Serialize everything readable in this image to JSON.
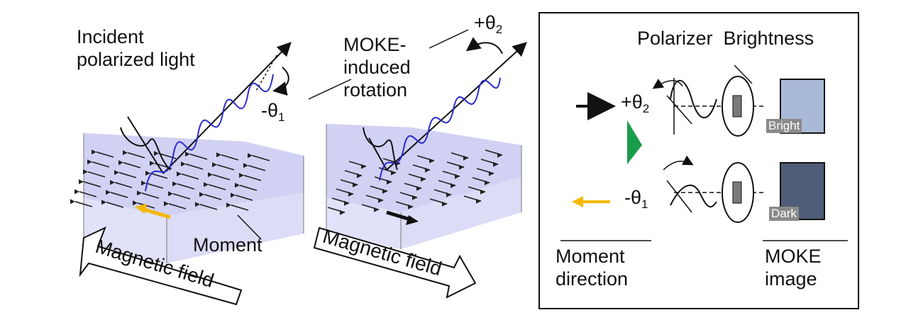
{
  "labels": {
    "incident_line1": "Incident",
    "incident_line2": "polarized light",
    "moke_line1": "MOKE-",
    "moke_line2": "induced",
    "moke_line3": "rotation",
    "theta_minus_1": "-θ",
    "theta_minus_1_sub": "1",
    "theta_plus_2": "+θ",
    "theta_plus_2_sub": "2",
    "moment": "Moment",
    "magnetic_field_left": "Magnetic field",
    "magnetic_field_right": "Magnetic field"
  },
  "panel": {
    "header": "Polarizer  Brightness",
    "theta_plus": "+θ",
    "theta_plus_sub": "2",
    "theta_minus": "-θ",
    "theta_minus_sub": "1",
    "bright_tag": "Bright",
    "dark_tag": "Dark",
    "footer_left_line1": "Moment",
    "footer_left_line2": "direction",
    "footer_right_line1": "MOKE",
    "footer_right_line2": "image"
  },
  "colors": {
    "slab_top": "#c9c9f2",
    "slab_side": "#d9d9f7",
    "wave": "#2a2acc",
    "moment_left": "#f5b800",
    "moment_right": "#111111",
    "bright_box": "#a9b9d8",
    "dark_box": "#4f5d78",
    "green_marker": "#1a9d4a"
  }
}
